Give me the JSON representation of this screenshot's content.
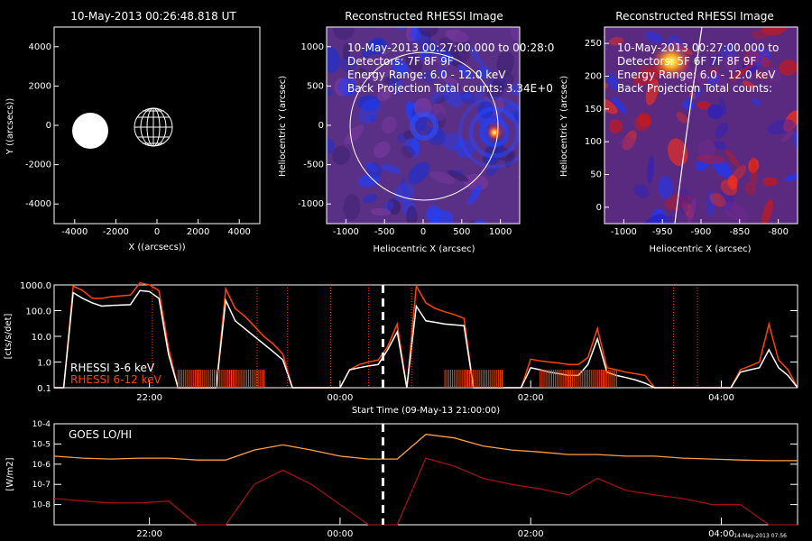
{
  "panel1": {
    "title": "10-May-2013 00:26:48.818 UT",
    "xlabel": "X ((arcsecs))",
    "ylabel": "Y ((arcsecs))",
    "xticks": [
      "-4000",
      "-2000",
      "0",
      "2000",
      "4000"
    ],
    "yticks": [
      "4000",
      "2000",
      "0",
      "-2000",
      "-4000"
    ]
  },
  "panel2": {
    "title": "Reconstructed RHESSI Image",
    "xlabel": "Heliocentric X (arcsec)",
    "ylabel": "Heliocentric Y (arcsec)",
    "xticks": [
      "-1000",
      "-500",
      "0",
      "500",
      "1000"
    ],
    "yticks": [
      "1000",
      "500",
      "0",
      "-500",
      "-1000"
    ],
    "lines": [
      "10-May-2013 00:27:00.000 to 00:28:0",
      "Detectors: 7F 8F 9F",
      "Energy Range: 6.0 - 12.0 keV",
      "Back Projection    Total counts: 3.34E+0"
    ]
  },
  "panel3": {
    "title": "Reconstructed RHESSI Image",
    "xlabel": "Heliocentric X (arcsec)",
    "ylabel": "Heliocentric Y (arcsec)",
    "xticks": [
      "-1000",
      "-950",
      "-900",
      "-850",
      "-800"
    ],
    "yticks": [
      "250",
      "200",
      "150",
      "100",
      "50",
      "0"
    ],
    "lines": [
      "10-May-2013 00:27:00.000 to",
      "Detectors: 5F 6F 7F 8F 9F",
      "Energy Range: 6.0 - 12.0 keV",
      "Back Projection    Total counts:"
    ]
  },
  "colors": {
    "white": "#ffffff",
    "red": "#ff4400",
    "goes_lo": "#ffa040",
    "goes_hi": "#a01010",
    "blue": "#1a3aff",
    "purple": "#6a2a8a"
  },
  "chart_data": [
    {
      "type": "line",
      "title": "",
      "ylabel": "[cts/s/det]",
      "xlabel": "Start Time (09-May-13 21:00:00)",
      "yscale": "log",
      "ylim": [
        0.1,
        1000
      ],
      "yticks": [
        "1000.0",
        "100.0",
        "10.0",
        "1.0",
        "0.1"
      ],
      "xticks": [
        "22:00",
        "00:00",
        "02:00",
        "04:00"
      ],
      "x_hours": [
        21.0,
        21.1,
        21.2,
        21.3,
        21.4,
        21.5,
        21.6,
        21.8,
        21.9,
        22.0,
        22.1,
        22.2,
        22.3,
        22.4,
        22.5,
        22.6,
        22.7,
        22.8,
        22.9,
        23.0,
        23.1,
        23.2,
        23.3,
        23.4,
        23.5,
        23.6,
        23.7,
        23.8,
        23.9,
        24.0,
        24.1,
        24.2,
        24.3,
        24.4,
        24.5,
        24.6,
        24.7,
        24.8,
        24.9,
        25.0,
        25.1,
        25.2,
        25.3,
        25.4,
        25.5,
        25.6,
        25.7,
        25.8,
        25.9,
        26.0,
        26.1,
        26.2,
        26.3,
        26.4,
        26.5,
        26.6,
        26.7,
        26.8,
        26.9,
        27.0,
        27.1,
        27.2,
        27.3,
        27.4,
        27.5,
        27.6,
        27.7,
        27.8,
        27.9,
        28.0,
        28.1,
        28.2,
        28.3,
        28.4,
        28.5,
        28.6,
        28.7,
        28.8
      ],
      "series": [
        {
          "name": "RHESSI  3-6 keV",
          "color": "#ffffff",
          "values": [
            0.1,
            0.1,
            500,
            300,
            200,
            150,
            160,
            170,
            600,
            550,
            300,
            2.0,
            0.1,
            0.1,
            0.1,
            0.1,
            0.1,
            250,
            40,
            20,
            10,
            5,
            2.5,
            1.2,
            0.1,
            0.1,
            0.1,
            0.1,
            0.1,
            0.1,
            0.5,
            0.6,
            0.7,
            0.8,
            3,
            15,
            0.1,
            150,
            40,
            35,
            30,
            28,
            26,
            0.1,
            0.1,
            0.1,
            0.1,
            0.1,
            0.1,
            0.6,
            0.5,
            0.4,
            0.35,
            0.3,
            0.3,
            0.8,
            8,
            0.4,
            0.3,
            0.25,
            0.2,
            0.15,
            0.1,
            0.1,
            0.1,
            0.1,
            0.1,
            0.1,
            0.1,
            0.1,
            0.1,
            0.4,
            0.5,
            0.6,
            3,
            0.6,
            0.3,
            0.1
          ]
        },
        {
          "name": "RHESSI  6-12 keV",
          "color": "#ff4400",
          "values": [
            0.1,
            0.1,
            900,
            600,
            300,
            300,
            350,
            400,
            1200,
            1000,
            600,
            3.5,
            0.1,
            0.1,
            0.1,
            0.1,
            0.1,
            700,
            120,
            60,
            25,
            10,
            5,
            2,
            0.1,
            0.1,
            0.1,
            0.1,
            0.1,
            0.1,
            0.5,
            0.8,
            1.0,
            1.2,
            4,
            30,
            0.1,
            900,
            200,
            120,
            90,
            70,
            50,
            0.1,
            0.1,
            0.1,
            0.1,
            0.1,
            0.1,
            1.3,
            1.1,
            1.0,
            0.9,
            0.8,
            0.8,
            1.5,
            20,
            0.6,
            0.5,
            0.4,
            0.35,
            0.3,
            0.1,
            0.1,
            0.1,
            0.1,
            0.1,
            0.1,
            0.1,
            0.1,
            0.1,
            0.5,
            0.7,
            1.0,
            30,
            1.2,
            0.5,
            0.1
          ]
        }
      ],
      "marker_time": "00:27"
    },
    {
      "type": "line",
      "title": "GOES LO/HI",
      "ylabel": "[W/m2]",
      "yscale": "log",
      "ylim": [
        1e-09,
        0.0001
      ],
      "yticks": [
        "10-4",
        "10-5",
        "10-6",
        "10-7",
        "10-8"
      ],
      "xticks": [
        "22:00",
        "00:00",
        "02:00",
        "04:00"
      ],
      "x_hours": [
        21.0,
        21.3,
        21.6,
        21.9,
        22.2,
        22.5,
        22.8,
        23.1,
        23.4,
        23.7,
        24.0,
        24.3,
        24.6,
        24.9,
        25.2,
        25.5,
        25.8,
        26.1,
        26.4,
        26.7,
        27.0,
        27.3,
        27.6,
        27.9,
        28.2,
        28.5,
        28.8
      ],
      "series": [
        {
          "name": "GOES LO",
          "color": "#ffa040",
          "values": [
            2.5e-06,
            2e-06,
            1.8e-06,
            2e-06,
            2e-06,
            1.6e-06,
            1.6e-06,
            5e-06,
            9e-06,
            5e-06,
            2.5e-06,
            1.8e-06,
            1.8e-06,
            3e-05,
            2e-05,
            8e-06,
            5e-06,
            4e-06,
            3e-06,
            3e-06,
            2.5e-06,
            2.5e-06,
            2e-06,
            1.8e-06,
            1.6e-06,
            1.5e-06,
            1.5e-06
          ]
        },
        {
          "name": "GOES HI",
          "color": "#a01010",
          "values": [
            2e-08,
            1.5e-08,
            1.2e-08,
            1.2e-08,
            1.5e-08,
            1e-09,
            1e-09,
            1e-07,
            5e-07,
            1e-07,
            1e-08,
            1e-09,
            1e-09,
            2e-06,
            8e-07,
            2e-07,
            1e-07,
            6e-08,
            3e-08,
            2e-07,
            5e-08,
            3e-08,
            2e-08,
            1e-08,
            1e-08,
            1e-09,
            1e-09
          ]
        }
      ],
      "marker_time": "00:27"
    }
  ],
  "stamp": "14-May-2013 07:56"
}
